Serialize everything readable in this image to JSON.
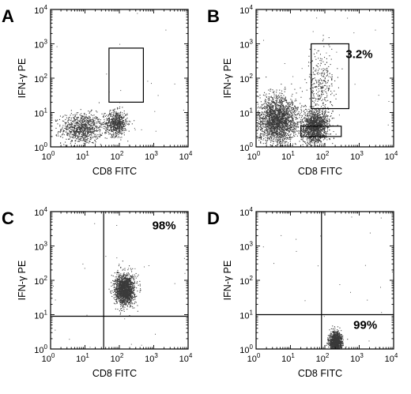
{
  "chart_data": [
    {
      "type": "scatter",
      "panel_label": "A",
      "xlabel": "CD8 FITC",
      "ylabel": "IFN-γ PE",
      "x_scale": "log",
      "y_scale": "log",
      "xlim": [
        1,
        10000
      ],
      "ylim": [
        1,
        10000
      ],
      "x_ticks": [
        "10",
        "10",
        "10",
        "10",
        "10"
      ],
      "x_tick_exponents": [
        "0",
        "1",
        "2",
        "3",
        "4"
      ],
      "y_ticks": [
        "10",
        "10",
        "10",
        "10",
        "10"
      ],
      "y_tick_exponents": [
        "0",
        "1",
        "2",
        "3",
        "4"
      ],
      "clusters": [
        {
          "x_center": 8,
          "y_center": 3.5,
          "x_spread_decades": 0.3,
          "y_spread_decades": 0.22,
          "count": 900
        },
        {
          "x_center": 80,
          "y_center": 5,
          "x_spread_decades": 0.16,
          "y_spread_decades": 0.18,
          "count": 650
        }
      ],
      "gates": [
        {
          "shape": "rectangle",
          "x_range": [
            50,
            500
          ],
          "y_range": [
            20,
            750
          ]
        }
      ],
      "annotations": []
    },
    {
      "type": "scatter",
      "panel_label": "B",
      "xlabel": "CD8 FITC",
      "ylabel": "IFN-γ PE",
      "x_scale": "log",
      "y_scale": "log",
      "xlim": [
        1,
        10000
      ],
      "ylim": [
        1,
        10000
      ],
      "x_ticks": [
        "10",
        "10",
        "10",
        "10",
        "10"
      ],
      "x_tick_exponents": [
        "0",
        "1",
        "2",
        "3",
        "4"
      ],
      "y_ticks": [
        "10",
        "10",
        "10",
        "10",
        "10"
      ],
      "y_tick_exponents": [
        "0",
        "1",
        "2",
        "3",
        "4"
      ],
      "clusters": [
        {
          "x_center": 4,
          "y_center": 6,
          "x_spread_decades": 0.28,
          "y_spread_decades": 0.35,
          "count": 2200
        },
        {
          "x_center": 50,
          "y_center": 4,
          "x_spread_decades": 0.2,
          "y_spread_decades": 0.25,
          "count": 1400
        },
        {
          "x_center": 80,
          "y_center": 60,
          "x_spread_decades": 0.2,
          "y_spread_decades": 0.5,
          "count": 300
        }
      ],
      "gates": [
        {
          "shape": "rectangle",
          "x_range": [
            20,
            300
          ],
          "y_range": [
            2,
            4
          ]
        },
        {
          "shape": "rectangle",
          "x_range": [
            40,
            500
          ],
          "y_range": [
            13,
            1000
          ]
        }
      ],
      "annotations": [
        {
          "text": "3.2%",
          "x": 1000,
          "y": 500
        }
      ]
    },
    {
      "type": "scatter",
      "panel_label": "C",
      "xlabel": "CD8 FITC",
      "ylabel": "IFN-γ PE",
      "x_scale": "log",
      "y_scale": "log",
      "xlim": [
        1,
        10000
      ],
      "ylim": [
        1,
        10000
      ],
      "x_ticks": [
        "10",
        "10",
        "10",
        "10",
        "10"
      ],
      "x_tick_exponents": [
        "0",
        "1",
        "2",
        "3",
        "4"
      ],
      "y_ticks": [
        "10",
        "10",
        "10",
        "10",
        "10"
      ],
      "y_tick_exponents": [
        "0",
        "1",
        "2",
        "3",
        "4"
      ],
      "clusters": [
        {
          "x_center": 140,
          "y_center": 55,
          "x_spread_decades": 0.14,
          "y_spread_decades": 0.22,
          "count": 1700
        }
      ],
      "quadrant_lines": {
        "x": 35,
        "y": 9
      },
      "annotations": [
        {
          "text": "98%",
          "x": 2000,
          "y": 4000
        }
      ]
    },
    {
      "type": "scatter",
      "panel_label": "D",
      "xlabel": "CD8 FITC",
      "ylabel": "IFN-γ PE",
      "x_scale": "log",
      "y_scale": "log",
      "xlim": [
        1,
        10000
      ],
      "ylim": [
        1,
        10000
      ],
      "x_ticks": [
        "10",
        "10",
        "10",
        "10",
        "10"
      ],
      "x_tick_exponents": [
        "0",
        "1",
        "2",
        "3",
        "4"
      ],
      "y_ticks": [
        "10",
        "10",
        "10",
        "10",
        "10"
      ],
      "y_tick_exponents": [
        "0",
        "1",
        "2",
        "3",
        "4"
      ],
      "clusters": [
        {
          "x_center": 200,
          "y_center": 1.7,
          "x_spread_decades": 0.09,
          "y_spread_decades": 0.14,
          "count": 1100
        }
      ],
      "quadrant_lines": {
        "x": 80,
        "y": 10
      },
      "annotations": [
        {
          "text": "99%",
          "x": 1500,
          "y": 5
        }
      ]
    }
  ]
}
